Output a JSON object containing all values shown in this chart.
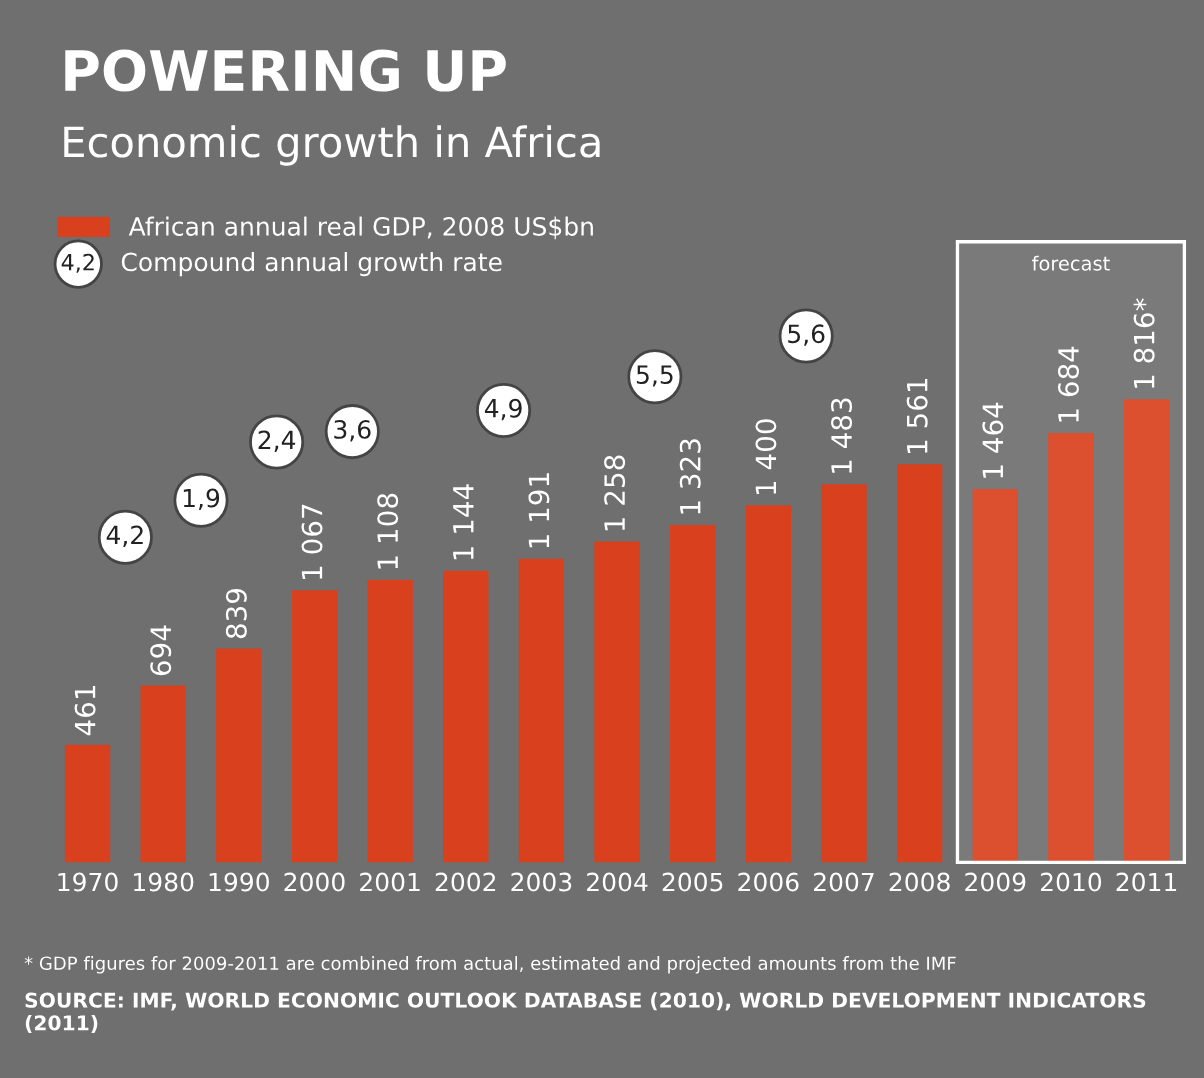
{
  "chart_data": {
    "type": "bar",
    "title": "POWERING UP",
    "subtitle": "Economic growth in Africa",
    "categories": [
      "1970",
      "1980",
      "1990",
      "2000",
      "2001",
      "2002",
      "2003",
      "2004",
      "2005",
      "2006",
      "2007",
      "2008",
      "2009",
      "2010",
      "2011"
    ],
    "series": [
      {
        "name": "African annual real GDP, 2008 US$bn",
        "color": "#d9401e",
        "values": [
          461,
          694,
          839,
          1067,
          1108,
          1144,
          1191,
          1258,
          1323,
          1400,
          1483,
          1561,
          1464,
          1684,
          1816
        ],
        "value_labels": [
          "461",
          "694",
          "839",
          "1 067",
          "1 108",
          "1 144",
          "1 191",
          "1 258",
          "1 323",
          "1 400",
          "1 483",
          "1 561",
          "1 464",
          "1 684",
          "1 816*"
        ]
      }
    ],
    "legend": "top left",
    "grid": false,
    "bands": [
      {
        "axis": "x",
        "from": "2009",
        "to": "2011",
        "label": "forecast",
        "color": "#ffffff"
      }
    ],
    "annotations": [
      "4,2",
      "1,9",
      "2,4",
      "3,6",
      "4,9",
      "5,5",
      "5,6",
      "Compound annual growth rate",
      "* GDP figures for 2009-2011 are combined from actual, estimated and projected amounts from the IMF",
      "SOURCE: IMF, WORLD ECONOMIC OUTLOOK DATABASE (2010), WORLD DEVELOPMENT INDICATORS (2011)"
    ]
  }
}
